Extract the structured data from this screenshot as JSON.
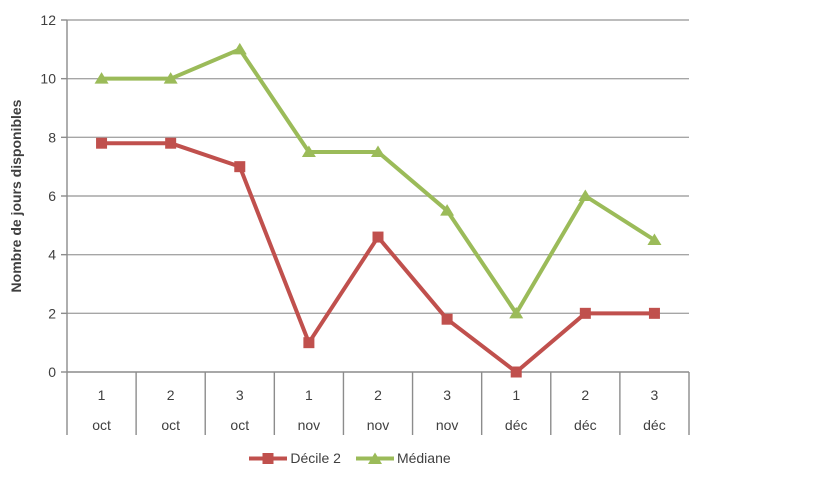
{
  "chart_data": {
    "type": "line",
    "title": "",
    "xlabel": "",
    "ylabel": "Nombre de jours disponibles",
    "ylim": [
      0,
      12
    ],
    "yticks": [
      0,
      2,
      4,
      6,
      8,
      10,
      12
    ],
    "grid": true,
    "legend_position": "bottom",
    "categories": [
      {
        "period": "1",
        "month": "oct"
      },
      {
        "period": "2",
        "month": "oct"
      },
      {
        "period": "3",
        "month": "oct"
      },
      {
        "period": "1",
        "month": "nov"
      },
      {
        "period": "2",
        "month": "nov"
      },
      {
        "period": "3",
        "month": "nov"
      },
      {
        "period": "1",
        "month": "déc"
      },
      {
        "period": "2",
        "month": "déc"
      },
      {
        "period": "3",
        "month": "déc"
      }
    ],
    "series": [
      {
        "name": "Décile 2",
        "marker": "square",
        "color": "#c0504d",
        "values": [
          7.8,
          7.8,
          7,
          1,
          4.6,
          1.8,
          0,
          2,
          2
        ]
      },
      {
        "name": "Médiane",
        "marker": "triangle",
        "color": "#9bbb59",
        "values": [
          10,
          10,
          11,
          7.5,
          7.5,
          5.5,
          2,
          6,
          4.5
        ]
      }
    ]
  },
  "styles": {
    "background": "#ffffff",
    "gridline_color": "#a6a6a6",
    "axis_color": "#8c8c8c",
    "text_color": "#3f3f3f"
  }
}
